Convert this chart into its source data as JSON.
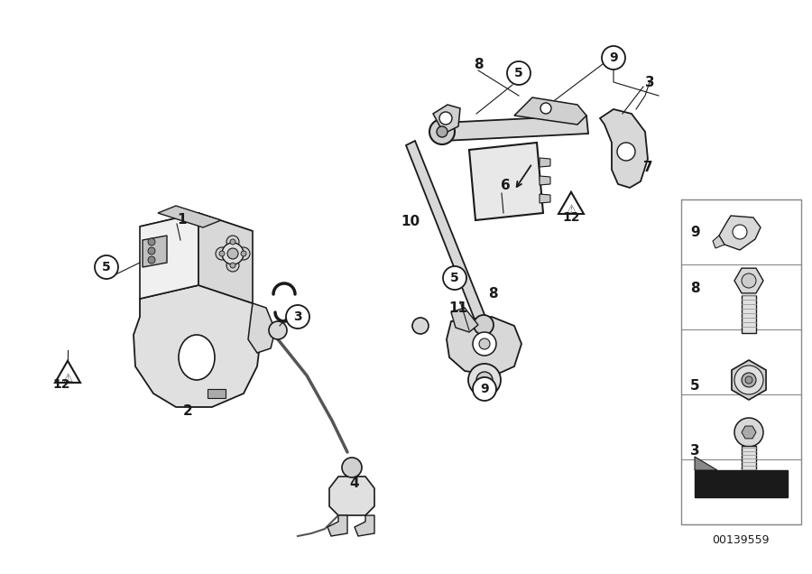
{
  "background_color": "#ffffff",
  "fig_width": 9.0,
  "fig_height": 6.36,
  "dpi": 100,
  "part_id": "00139559",
  "line_color": "#1a1a1a",
  "light_gray": "#d0d0d0",
  "mid_gray": "#999999",
  "dark_gray": "#555555"
}
